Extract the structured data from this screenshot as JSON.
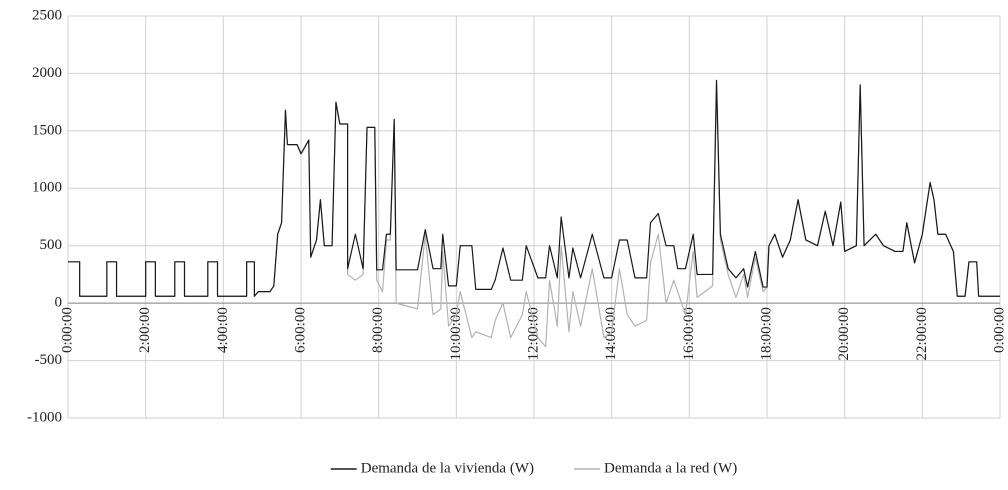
{
  "chart_data": {
    "type": "line",
    "x": [
      0,
      0.3,
      0.3,
      1.0,
      1.0,
      1.25,
      1.25,
      2.0,
      2.0,
      2.25,
      2.25,
      2.75,
      2.75,
      3.0,
      3.0,
      3.6,
      3.6,
      3.85,
      3.85,
      4.6,
      4.6,
      4.8,
      4.8,
      4.9,
      5.2,
      5.3,
      5.4,
      5.5,
      5.6,
      5.65,
      5.9,
      6.0,
      6.2,
      6.25,
      6.4,
      6.5,
      6.6,
      6.8,
      6.9,
      7.0,
      7.2,
      7.2,
      7.4,
      7.6,
      7.7,
      7.9,
      7.95,
      8.1,
      8.2,
      8.3,
      8.4,
      8.45,
      9.0,
      9.2,
      9.4,
      9.6,
      9.65,
      9.8,
      10.0,
      10.1,
      10.4,
      10.5,
      10.9,
      11.0,
      11.2,
      11.4,
      11.7,
      11.8,
      12.1,
      12.3,
      12.4,
      12.6,
      12.7,
      12.9,
      13.0,
      13.2,
      13.5,
      13.8,
      14.0,
      14.2,
      14.4,
      14.6,
      14.9,
      15.0,
      15.2,
      15.4,
      15.6,
      15.7,
      15.9,
      16.1,
      16.2,
      16.6,
      16.7,
      16.8,
      17.0,
      17.2,
      17.4,
      17.5,
      17.7,
      17.9,
      18.0,
      18.05,
      18.2,
      18.4,
      18.6,
      18.8,
      19.0,
      19.3,
      19.5,
      19.7,
      19.9,
      20.0,
      20.3,
      20.4,
      20.5,
      20.8,
      21.0,
      21.3,
      21.5,
      21.6,
      21.8,
      22.0,
      22.2,
      22.3,
      22.4,
      22.6,
      22.8,
      22.9,
      23.1,
      23.2,
      23.4,
      23.45,
      24
    ],
    "series": [
      {
        "name": "Demanda de la vivienda (W)",
        "color": "#1a1a1a",
        "values": [
          360,
          360,
          60,
          60,
          360,
          360,
          60,
          60,
          360,
          360,
          60,
          60,
          360,
          360,
          60,
          60,
          360,
          360,
          60,
          60,
          360,
          360,
          60,
          100,
          100,
          150,
          600,
          700,
          1680,
          1380,
          1380,
          1300,
          1420,
          400,
          550,
          900,
          500,
          500,
          1750,
          1560,
          1560,
          300,
          600,
          300,
          1530,
          1530,
          290,
          290,
          600,
          600,
          1600,
          290,
          290,
          640,
          300,
          300,
          600,
          150,
          150,
          500,
          500,
          120,
          120,
          200,
          480,
          200,
          200,
          500,
          220,
          220,
          500,
          220,
          750,
          220,
          480,
          220,
          600,
          220,
          220,
          550,
          550,
          220,
          220,
          700,
          780,
          500,
          500,
          300,
          300,
          600,
          250,
          250,
          1940,
          600,
          300,
          220,
          300,
          140,
          450,
          140,
          140,
          500,
          600,
          400,
          550,
          900,
          550,
          500,
          800,
          500,
          880,
          450,
          500,
          1900,
          500,
          600,
          500,
          450,
          450,
          700,
          350,
          600,
          1050,
          900,
          600,
          600,
          450,
          60,
          60,
          360,
          360,
          60,
          60
        ]
      },
      {
        "name": "Demanda a la red (W)",
        "color": "#b3b3b3",
        "values": [
          360,
          360,
          60,
          60,
          360,
          360,
          60,
          60,
          360,
          360,
          60,
          60,
          360,
          360,
          60,
          60,
          360,
          360,
          60,
          60,
          360,
          360,
          60,
          100,
          100,
          150,
          600,
          700,
          1680,
          1380,
          1380,
          1300,
          1420,
          400,
          550,
          900,
          500,
          500,
          1750,
          1560,
          1560,
          250,
          200,
          250,
          1530,
          1530,
          200,
          100,
          550,
          550,
          1600,
          0,
          -50,
          600,
          -100,
          -50,
          450,
          -200,
          -100,
          100,
          -300,
          -250,
          -300,
          -150,
          0,
          -300,
          -100,
          100,
          -300,
          -380,
          200,
          -200,
          500,
          -250,
          100,
          -200,
          300,
          -300,
          -250,
          300,
          -100,
          -200,
          -150,
          350,
          600,
          0,
          200,
          100,
          -100,
          450,
          50,
          150,
          1900,
          550,
          250,
          50,
          250,
          50,
          400,
          100,
          140,
          500,
          600,
          400,
          550,
          900,
          550,
          500,
          800,
          500,
          880,
          450,
          500,
          1900,
          500,
          600,
          500,
          450,
          450,
          700,
          350,
          600,
          1050,
          900,
          600,
          600,
          450,
          60,
          60,
          360,
          360,
          60,
          60
        ]
      }
    ],
    "xlim": [
      0,
      24
    ],
    "xticks": [
      {
        "value": 0,
        "label": "0:00:00"
      },
      {
        "value": 2,
        "label": "2:00:00"
      },
      {
        "value": 4,
        "label": "4:00:00"
      },
      {
        "value": 6,
        "label": "6:00:00"
      },
      {
        "value": 8,
        "label": "8:00:00"
      },
      {
        "value": 10,
        "label": "10:00:00"
      },
      {
        "value": 12,
        "label": "12:00:00"
      },
      {
        "value": 14,
        "label": "14:00:00"
      },
      {
        "value": 16,
        "label": "16:00:00"
      },
      {
        "value": 18,
        "label": "18:00:00"
      },
      {
        "value": 20,
        "label": "20:00:00"
      },
      {
        "value": 22,
        "label": "22:00:00"
      },
      {
        "value": 24,
        "label": "0:00:00"
      }
    ],
    "ylim": [
      -1000,
      2500
    ],
    "yticks": [
      -1000,
      -500,
      0,
      500,
      1000,
      1500,
      2000,
      2500
    ],
    "grid": true,
    "legend": "bottom"
  }
}
